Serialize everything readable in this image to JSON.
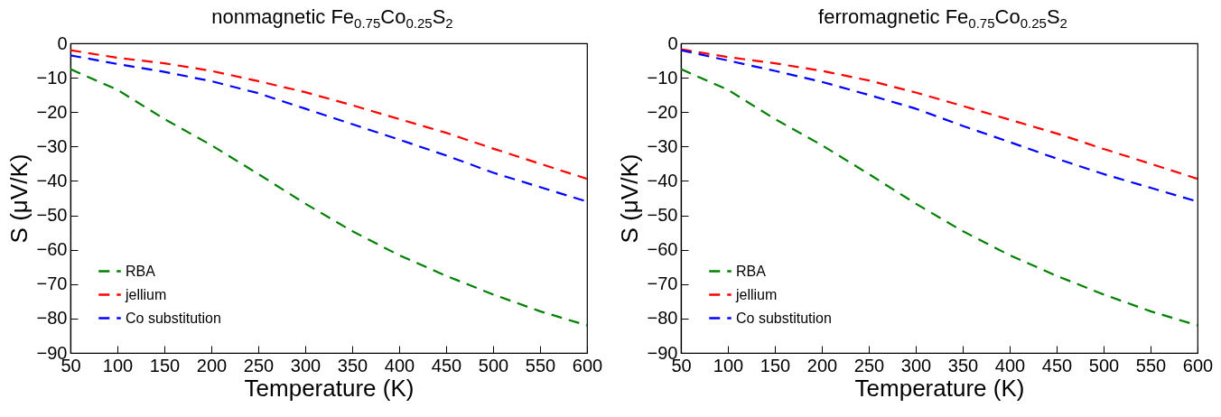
{
  "chart_data": [
    {
      "type": "line",
      "title": "nonmagnetic Fe$_{0.75}$Co$_{0.25}$S$_{2}$",
      "xlabel": "Temperature (K)",
      "ylabel": "S (μV/K)",
      "x": [
        50,
        100,
        150,
        200,
        250,
        300,
        350,
        400,
        450,
        500,
        550,
        600
      ],
      "xlim": [
        50,
        600
      ],
      "xticks": [
        50,
        100,
        150,
        200,
        250,
        300,
        350,
        400,
        450,
        500,
        550,
        600
      ],
      "ylim": [
        -90,
        0
      ],
      "yticks": [
        -90,
        -80,
        -70,
        -60,
        -50,
        -40,
        -30,
        -20,
        -10,
        0
      ],
      "grid": false,
      "legend": "bottom left",
      "line_style": "dashed",
      "series": [
        {
          "name": "RBA",
          "color": "#008000",
          "values": [
            -7.5,
            -13.5,
            -22,
            -29.6,
            -38,
            -46.6,
            -54.6,
            -61.6,
            -67.6,
            -73,
            -77.9,
            -82
          ]
        },
        {
          "name": "jellium",
          "color": "#ff0000",
          "values": [
            -2,
            -4.2,
            -5.8,
            -8,
            -11,
            -14.2,
            -18,
            -22,
            -26,
            -30.6,
            -35,
            -39.4
          ]
        },
        {
          "name": "Co substitution",
          "color": "#0000ff",
          "values": [
            -3.5,
            -6,
            -8.3,
            -11,
            -14.5,
            -19,
            -23.5,
            -28,
            -32.6,
            -37.6,
            -41.8,
            -46
          ]
        }
      ]
    },
    {
      "type": "line",
      "title": "ferromagnetic Fe$_{0.75}$Co$_{0.25}$S$_{2}$",
      "xlabel": "Temperature (K)",
      "ylabel": "S (μV/K)",
      "x": [
        50,
        100,
        150,
        200,
        250,
        300,
        350,
        400,
        450,
        500,
        550,
        600
      ],
      "xlim": [
        50,
        600
      ],
      "xticks": [
        50,
        100,
        150,
        200,
        250,
        300,
        350,
        400,
        450,
        500,
        550,
        600
      ],
      "ylim": [
        -90,
        0
      ],
      "yticks": [
        -90,
        -80,
        -70,
        -60,
        -50,
        -40,
        -30,
        -20,
        -10,
        0
      ],
      "grid": false,
      "legend": "bottom left",
      "line_style": "dashed",
      "series": [
        {
          "name": "RBA",
          "color": "#008000",
          "values": [
            -7.5,
            -13.5,
            -22,
            -29.6,
            -38,
            -46.6,
            -54.6,
            -61.6,
            -67.6,
            -73,
            -77.9,
            -82
          ]
        },
        {
          "name": "jellium",
          "color": "#ff0000",
          "values": [
            -1.7,
            -4,
            -5.8,
            -8,
            -10.8,
            -14.3,
            -18.2,
            -22.2,
            -26.2,
            -30.7,
            -35,
            -39.4
          ]
        },
        {
          "name": "Co substitution",
          "color": "#0000ff",
          "values": [
            -2,
            -5,
            -8,
            -11.2,
            -15,
            -19,
            -24,
            -28.7,
            -33.5,
            -38,
            -42,
            -46
          ]
        }
      ]
    }
  ]
}
